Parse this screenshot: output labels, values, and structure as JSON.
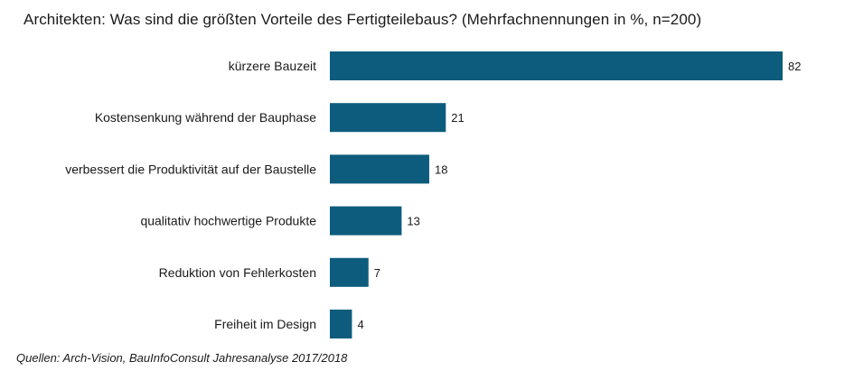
{
  "chart_data": {
    "type": "bar",
    "orientation": "horizontal",
    "title": "Architekten:  Was sind die größten Vorteile des Fertigteilebaus? (Mehrfachnennungen  in %, n=200)",
    "categories": [
      "kürzere Bauzeit",
      "Kostensenkung während der Bauphase",
      "verbessert die Produktivität auf der Baustelle",
      "qualitativ hochwertige Produkte",
      "Reduktion von Fehlerkosten",
      "Freiheit im Design"
    ],
    "values": [
      82,
      21,
      18,
      13,
      7,
      4
    ],
    "value_labels": [
      "82",
      "21",
      "18",
      "13",
      "7",
      "4"
    ],
    "xlim": [
      0,
      82
    ],
    "bar_color": "#0e5c7d",
    "grid": false,
    "legend": false
  },
  "source": "Quellen: Arch-Vision, BauInfoConsult Jahresanalyse 2017/2018"
}
